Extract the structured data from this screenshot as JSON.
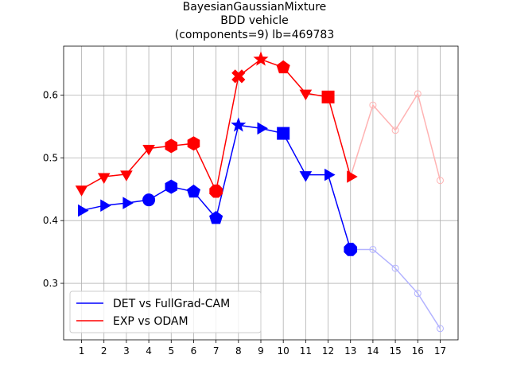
{
  "chart_data": {
    "type": "line",
    "title_lines": [
      "BayesianGaussianMixture",
      "BDD vehicle",
      "(components=9) lb=469783"
    ],
    "xlabel": "",
    "ylabel": "",
    "x": [
      1,
      2,
      3,
      4,
      5,
      6,
      7,
      8,
      9,
      10,
      11,
      12,
      13,
      14,
      15,
      16,
      17
    ],
    "xlim": [
      0.2,
      17.8
    ],
    "ylim": [
      0.21,
      0.678
    ],
    "yticks": [
      0.3,
      0.4,
      0.5,
      0.6
    ],
    "ytick_labels": [
      "0.3",
      "0.4",
      "0.5",
      "0.6"
    ],
    "grid": true,
    "legend_position": "lower-left",
    "highlight_until_x": 13,
    "series": [
      {
        "name": "DET vs FullGrad-CAM",
        "color": "#0000ff",
        "faded_color": "#b3b3ff",
        "values": [
          0.416,
          0.424,
          0.428,
          0.433,
          0.454,
          0.446,
          0.404,
          0.552,
          0.547,
          0.539,
          0.473,
          0.473,
          0.354,
          0.354,
          0.324,
          0.284,
          0.228
        ],
        "markers": [
          "triangle-right",
          "triangle-right",
          "triangle-right",
          "circle",
          "hexagon",
          "pentagon",
          "pentagon",
          "star",
          "triangle-right",
          "square",
          "triangle-down",
          "triangle-right",
          "octagon",
          "circle",
          "circle",
          "circle",
          "circle"
        ]
      },
      {
        "name": "EXP vs ODAM",
        "color": "#ff0000",
        "faded_color": "#ffb3b3",
        "values": [
          0.45,
          0.47,
          0.474,
          0.515,
          0.519,
          0.523,
          0.447,
          0.63,
          0.657,
          0.644,
          0.603,
          0.597,
          0.47,
          0.584,
          0.544,
          0.602,
          0.464
        ],
        "markers": [
          "triangle-down",
          "triangle-down",
          "triangle-down",
          "triangle-down",
          "hexagon",
          "hexagon",
          "octagon",
          "x-filled",
          "star",
          "pentagon",
          "triangle-down",
          "square",
          "triangle-right",
          "circle",
          "circle",
          "circle",
          "circle"
        ]
      }
    ]
  }
}
